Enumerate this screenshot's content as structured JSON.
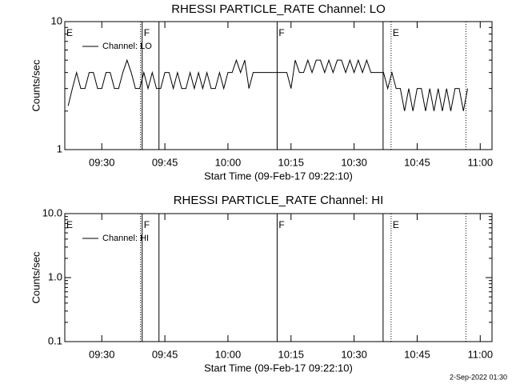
{
  "chart_data": [
    {
      "type": "line",
      "title": "RHESSI PARTICLE_RATE Channel: LO",
      "ylabel": "Counts/sec",
      "xlabel": "Start Time (09-Feb-17 09:22:10)",
      "x": [
        562,
        563,
        564,
        565,
        566,
        567,
        568,
        569,
        570,
        571,
        572,
        573,
        574,
        575,
        576,
        577,
        578,
        579,
        580,
        581,
        582,
        583,
        584,
        585,
        586,
        587,
        588,
        589,
        590,
        591,
        592,
        593,
        594,
        595,
        596,
        597,
        598,
        599,
        600,
        601,
        602,
        603,
        604,
        605,
        606,
        607,
        608,
        609,
        610,
        611,
        612,
        613,
        614,
        615,
        616,
        617,
        618,
        619,
        620,
        621,
        622,
        623,
        624,
        625,
        626,
        627,
        628,
        629,
        630,
        631,
        632,
        633,
        634,
        635,
        636,
        637,
        638,
        639,
        640,
        641,
        642,
        643,
        644,
        645,
        646,
        647,
        648,
        649,
        650,
        651,
        652,
        653,
        654,
        655,
        656,
        657
      ],
      "series": [
        {
          "name": "Channel: LO",
          "color": "#000000",
          "values": [
            2.2,
            3,
            4,
            3,
            3,
            4,
            4,
            3,
            3,
            4,
            4,
            3,
            3,
            4,
            5,
            4,
            3,
            3,
            4,
            3,
            4,
            3,
            3,
            4,
            4,
            3,
            4,
            3,
            3,
            4,
            3,
            4,
            3,
            4,
            3,
            3,
            4,
            3,
            4,
            4,
            5,
            4,
            5,
            3,
            4,
            4,
            4,
            4,
            4,
            4,
            4,
            4,
            4,
            3,
            5,
            4,
            4,
            5,
            4,
            5,
            5,
            4,
            5,
            4,
            5,
            5,
            4,
            5,
            4,
            5,
            4,
            5,
            4,
            4,
            4,
            4,
            3,
            4,
            3,
            3,
            2,
            3,
            2,
            3,
            3,
            2,
            3,
            2,
            3,
            2,
            3,
            2,
            3,
            3,
            2,
            3
          ]
        }
      ],
      "log_y": true,
      "ylim": [
        1,
        10
      ],
      "yticks": [
        1,
        10
      ],
      "yticks_minor": [
        2,
        3,
        4,
        5,
        6,
        7,
        8,
        9
      ],
      "xlim": [
        561.2,
        662.8
      ],
      "xticks": [
        {
          "value": 570,
          "label": "09:30"
        },
        {
          "value": 585,
          "label": "09:45"
        },
        {
          "value": 600,
          "label": "10:00"
        },
        {
          "value": 615,
          "label": "10:15"
        },
        {
          "value": 630,
          "label": "10:30"
        },
        {
          "value": 645,
          "label": "10:45"
        },
        {
          "value": 660,
          "label": "11:00"
        }
      ],
      "solid_lines": [
        579.6,
        583.6,
        611.7,
        636.9
      ],
      "dotted_lines": [
        579.2,
        638.8,
        656.6
      ],
      "flags": [
        {
          "label": "E",
          "x": 561.2
        },
        {
          "label": "F",
          "x": 579.6
        },
        {
          "label": "F",
          "x": 611.7
        },
        {
          "label": "E",
          "x": 638.8
        }
      ],
      "legend": "upper left"
    },
    {
      "type": "line",
      "title": "RHESSI PARTICLE_RATE Channel: HI",
      "ylabel": "Counts/sec",
      "xlabel": "Start Time (09-Feb-17 09:22:10)",
      "x": [],
      "series": [
        {
          "name": "Channel: HI",
          "color": "#000000",
          "values": []
        }
      ],
      "log_y": true,
      "ylim": [
        0.1,
        10
      ],
      "yticks": [
        0.1,
        {
          "value": 1,
          "label": "1.0"
        },
        {
          "value": 10,
          "label": "10.0"
        }
      ],
      "yticks_minor": [
        0.2,
        0.3,
        0.4,
        0.5,
        0.6,
        0.7,
        0.8,
        0.9,
        2,
        3,
        4,
        5,
        6,
        7,
        8,
        9
      ],
      "xlim": [
        561.2,
        662.8
      ],
      "xticks": [
        {
          "value": 570,
          "label": "09:30"
        },
        {
          "value": 585,
          "label": "09:45"
        },
        {
          "value": 600,
          "label": "10:00"
        },
        {
          "value": 615,
          "label": "10:15"
        },
        {
          "value": 630,
          "label": "10:30"
        },
        {
          "value": 645,
          "label": "10:45"
        },
        {
          "value": 660,
          "label": "11:00"
        }
      ],
      "solid_lines": [
        579.6,
        583.6,
        611.7,
        636.9
      ],
      "dotted_lines": [
        579.2,
        638.8,
        656.6
      ],
      "flags": [
        {
          "label": "E",
          "x": 561.2
        },
        {
          "label": "F",
          "x": 579.6
        },
        {
          "label": "F",
          "x": 611.7
        },
        {
          "label": "E",
          "x": 638.8
        }
      ],
      "legend": "upper left"
    }
  ],
  "footer": "2-Sep-2022 01:30"
}
